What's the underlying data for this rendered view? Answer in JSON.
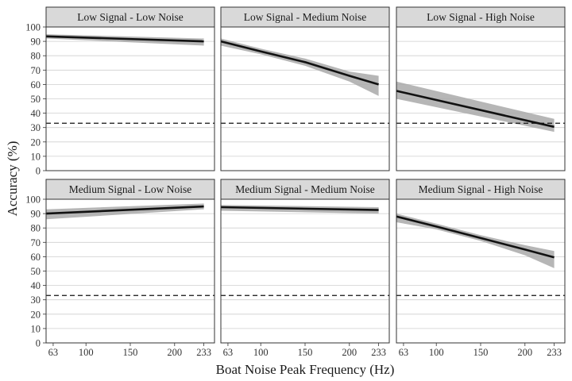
{
  "chart_data": {
    "type": "line",
    "xlabel": "Boat Noise Peak Frequency (Hz)",
    "ylabel": "Accuracy (%)",
    "xlim": [
      55,
      245
    ],
    "ylim": [
      0,
      100
    ],
    "x_ticks": [
      63,
      100,
      150,
      200,
      233
    ],
    "y_ticks": [
      0,
      10,
      20,
      30,
      40,
      50,
      60,
      70,
      80,
      90,
      100
    ],
    "reference_line": {
      "y": 33,
      "style": "dashed"
    },
    "grid": true,
    "ribbon_color": "#a9a9a9",
    "line_color": "#111111",
    "facets": [
      {
        "title": "Low Signal - Low Noise",
        "x": [
          55,
          233
        ],
        "y": [
          93.5,
          90
        ],
        "lower": [
          92,
          87
        ],
        "upper": [
          95,
          92
        ]
      },
      {
        "title": "Low Signal - Medium Noise",
        "x": [
          55,
          100,
          150,
          200,
          233
        ],
        "y": [
          90,
          83,
          75.5,
          66,
          60
        ],
        "lower": [
          87,
          81,
          73,
          62,
          52
        ],
        "upper": [
          92,
          85,
          78,
          69,
          66
        ]
      },
      {
        "title": "Low Signal - High Noise",
        "x": [
          55,
          233
        ],
        "y": [
          55.5,
          30.5
        ],
        "lower": [
          50,
          27
        ],
        "upper": [
          62,
          36
        ]
      },
      {
        "title": "Medium Signal - Low Noise",
        "x": [
          55,
          233
        ],
        "y": [
          90,
          95
        ],
        "lower": [
          86,
          93
        ],
        "upper": [
          93,
          97
        ]
      },
      {
        "title": "Medium Signal - Medium Noise",
        "x": [
          55,
          233
        ],
        "y": [
          94.5,
          92.5
        ],
        "lower": [
          92,
          90
        ],
        "upper": [
          96,
          94.5
        ]
      },
      {
        "title": "Medium Signal - High Noise",
        "x": [
          55,
          100,
          150,
          200,
          233
        ],
        "y": [
          88,
          81,
          73,
          65,
          59.5
        ],
        "lower": [
          84,
          79,
          71,
          61,
          52
        ],
        "upper": [
          90,
          83,
          75,
          68,
          64
        ]
      }
    ]
  }
}
